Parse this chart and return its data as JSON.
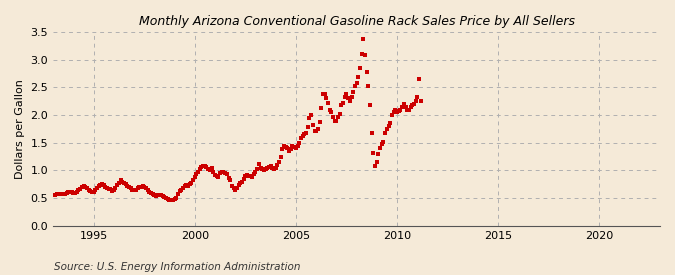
{
  "title": "Monthly Arizona Conventional Gasoline Rack Sales Price by All Sellers",
  "ylabel": "Dollars per Gallon",
  "source": "Source: U.S. Energy Information Administration",
  "background_color": "#f5ead8",
  "marker_color": "#cc0000",
  "xlim": [
    1993.0,
    2023.0
  ],
  "ylim": [
    0.0,
    3.5
  ],
  "yticks": [
    0.0,
    0.5,
    1.0,
    1.5,
    2.0,
    2.5,
    3.0,
    3.5
  ],
  "xticks": [
    1995,
    2000,
    2005,
    2010,
    2015,
    2020
  ],
  "data": [
    [
      1993.08,
      0.56
    ],
    [
      1993.17,
      0.57
    ],
    [
      1993.25,
      0.57
    ],
    [
      1993.33,
      0.57
    ],
    [
      1993.42,
      0.57
    ],
    [
      1993.5,
      0.57
    ],
    [
      1993.58,
      0.58
    ],
    [
      1993.67,
      0.6
    ],
    [
      1993.75,
      0.62
    ],
    [
      1993.83,
      0.62
    ],
    [
      1993.92,
      0.61
    ],
    [
      1994.0,
      0.6
    ],
    [
      1994.08,
      0.6
    ],
    [
      1994.17,
      0.62
    ],
    [
      1994.25,
      0.65
    ],
    [
      1994.33,
      0.67
    ],
    [
      1994.42,
      0.7
    ],
    [
      1994.5,
      0.72
    ],
    [
      1994.58,
      0.71
    ],
    [
      1994.67,
      0.68
    ],
    [
      1994.75,
      0.65
    ],
    [
      1994.83,
      0.63
    ],
    [
      1994.92,
      0.62
    ],
    [
      1995.0,
      0.62
    ],
    [
      1995.08,
      0.64
    ],
    [
      1995.17,
      0.68
    ],
    [
      1995.25,
      0.72
    ],
    [
      1995.33,
      0.74
    ],
    [
      1995.42,
      0.76
    ],
    [
      1995.5,
      0.74
    ],
    [
      1995.58,
      0.71
    ],
    [
      1995.67,
      0.69
    ],
    [
      1995.75,
      0.67
    ],
    [
      1995.83,
      0.66
    ],
    [
      1995.92,
      0.63
    ],
    [
      1996.0,
      0.64
    ],
    [
      1996.08,
      0.68
    ],
    [
      1996.17,
      0.73
    ],
    [
      1996.25,
      0.78
    ],
    [
      1996.33,
      0.82
    ],
    [
      1996.42,
      0.8
    ],
    [
      1996.5,
      0.78
    ],
    [
      1996.58,
      0.75
    ],
    [
      1996.67,
      0.72
    ],
    [
      1996.75,
      0.7
    ],
    [
      1996.83,
      0.68
    ],
    [
      1996.92,
      0.65
    ],
    [
      1997.0,
      0.64
    ],
    [
      1997.08,
      0.65
    ],
    [
      1997.17,
      0.68
    ],
    [
      1997.25,
      0.7
    ],
    [
      1997.33,
      0.7
    ],
    [
      1997.42,
      0.72
    ],
    [
      1997.5,
      0.7
    ],
    [
      1997.58,
      0.68
    ],
    [
      1997.67,
      0.65
    ],
    [
      1997.75,
      0.62
    ],
    [
      1997.83,
      0.6
    ],
    [
      1997.92,
      0.58
    ],
    [
      1998.0,
      0.55
    ],
    [
      1998.08,
      0.54
    ],
    [
      1998.17,
      0.55
    ],
    [
      1998.25,
      0.55
    ],
    [
      1998.33,
      0.55
    ],
    [
      1998.42,
      0.54
    ],
    [
      1998.5,
      0.52
    ],
    [
      1998.58,
      0.5
    ],
    [
      1998.67,
      0.48
    ],
    [
      1998.75,
      0.46
    ],
    [
      1998.83,
      0.46
    ],
    [
      1998.92,
      0.47
    ],
    [
      1999.0,
      0.48
    ],
    [
      1999.08,
      0.5
    ],
    [
      1999.17,
      0.58
    ],
    [
      1999.25,
      0.63
    ],
    [
      1999.33,
      0.65
    ],
    [
      1999.42,
      0.68
    ],
    [
      1999.5,
      0.72
    ],
    [
      1999.58,
      0.73
    ],
    [
      1999.67,
      0.72
    ],
    [
      1999.75,
      0.75
    ],
    [
      1999.83,
      0.78
    ],
    [
      1999.92,
      0.82
    ],
    [
      2000.0,
      0.88
    ],
    [
      2000.08,
      0.93
    ],
    [
      2000.17,
      0.98
    ],
    [
      2000.25,
      1.03
    ],
    [
      2000.33,
      1.07
    ],
    [
      2000.42,
      1.08
    ],
    [
      2000.5,
      1.08
    ],
    [
      2000.58,
      1.06
    ],
    [
      2000.67,
      1.03
    ],
    [
      2000.75,
      1.01
    ],
    [
      2000.83,
      1.05
    ],
    [
      2000.92,
      0.98
    ],
    [
      2001.0,
      0.92
    ],
    [
      2001.08,
      0.9
    ],
    [
      2001.17,
      0.88
    ],
    [
      2001.25,
      0.95
    ],
    [
      2001.33,
      0.97
    ],
    [
      2001.42,
      0.97
    ],
    [
      2001.5,
      0.95
    ],
    [
      2001.58,
      0.93
    ],
    [
      2001.67,
      0.87
    ],
    [
      2001.75,
      0.82
    ],
    [
      2001.83,
      0.72
    ],
    [
      2001.92,
      0.68
    ],
    [
      2002.0,
      0.65
    ],
    [
      2002.08,
      0.68
    ],
    [
      2002.17,
      0.73
    ],
    [
      2002.25,
      0.78
    ],
    [
      2002.33,
      0.8
    ],
    [
      2002.42,
      0.85
    ],
    [
      2002.5,
      0.9
    ],
    [
      2002.58,
      0.92
    ],
    [
      2002.67,
      0.9
    ],
    [
      2002.75,
      0.9
    ],
    [
      2002.83,
      0.88
    ],
    [
      2002.92,
      0.93
    ],
    [
      2003.0,
      0.98
    ],
    [
      2003.08,
      1.03
    ],
    [
      2003.17,
      1.12
    ],
    [
      2003.25,
      1.05
    ],
    [
      2003.33,
      1.02
    ],
    [
      2003.42,
      1.0
    ],
    [
      2003.5,
      1.02
    ],
    [
      2003.58,
      1.05
    ],
    [
      2003.67,
      1.07
    ],
    [
      2003.75,
      1.08
    ],
    [
      2003.83,
      1.05
    ],
    [
      2003.92,
      1.02
    ],
    [
      2004.0,
      1.05
    ],
    [
      2004.08,
      1.1
    ],
    [
      2004.17,
      1.15
    ],
    [
      2004.25,
      1.25
    ],
    [
      2004.33,
      1.38
    ],
    [
      2004.42,
      1.45
    ],
    [
      2004.5,
      1.42
    ],
    [
      2004.58,
      1.4
    ],
    [
      2004.67,
      1.35
    ],
    [
      2004.75,
      1.38
    ],
    [
      2004.83,
      1.45
    ],
    [
      2004.92,
      1.42
    ],
    [
      2005.0,
      1.4
    ],
    [
      2005.08,
      1.45
    ],
    [
      2005.17,
      1.5
    ],
    [
      2005.25,
      1.58
    ],
    [
      2005.33,
      1.63
    ],
    [
      2005.42,
      1.65
    ],
    [
      2005.5,
      1.68
    ],
    [
      2005.58,
      1.78
    ],
    [
      2005.67,
      1.95
    ],
    [
      2005.75,
      2.0
    ],
    [
      2005.83,
      1.82
    ],
    [
      2005.92,
      1.72
    ],
    [
      2006.0,
      1.72
    ],
    [
      2006.08,
      1.75
    ],
    [
      2006.17,
      1.88
    ],
    [
      2006.25,
      2.12
    ],
    [
      2006.33,
      2.38
    ],
    [
      2006.42,
      2.38
    ],
    [
      2006.5,
      2.3
    ],
    [
      2006.58,
      2.22
    ],
    [
      2006.67,
      2.1
    ],
    [
      2006.75,
      2.05
    ],
    [
      2006.83,
      1.97
    ],
    [
      2006.92,
      1.9
    ],
    [
      2007.0,
      1.9
    ],
    [
      2007.08,
      1.96
    ],
    [
      2007.17,
      2.02
    ],
    [
      2007.25,
      2.18
    ],
    [
      2007.33,
      2.22
    ],
    [
      2007.42,
      2.32
    ],
    [
      2007.5,
      2.38
    ],
    [
      2007.58,
      2.3
    ],
    [
      2007.67,
      2.26
    ],
    [
      2007.75,
      2.32
    ],
    [
      2007.83,
      2.42
    ],
    [
      2007.92,
      2.52
    ],
    [
      2008.0,
      2.58
    ],
    [
      2008.08,
      2.68
    ],
    [
      2008.17,
      2.85
    ],
    [
      2008.25,
      3.1
    ],
    [
      2008.33,
      3.38
    ],
    [
      2008.42,
      3.08
    ],
    [
      2008.5,
      2.78
    ],
    [
      2008.58,
      2.52
    ],
    [
      2008.67,
      2.18
    ],
    [
      2008.75,
      1.68
    ],
    [
      2008.83,
      1.32
    ],
    [
      2008.92,
      1.08
    ],
    [
      2009.0,
      1.15
    ],
    [
      2009.08,
      1.3
    ],
    [
      2009.17,
      1.4
    ],
    [
      2009.25,
      1.48
    ],
    [
      2009.33,
      1.52
    ],
    [
      2009.42,
      1.68
    ],
    [
      2009.5,
      1.75
    ],
    [
      2009.58,
      1.8
    ],
    [
      2009.67,
      1.85
    ],
    [
      2009.75,
      2.0
    ],
    [
      2009.83,
      2.05
    ],
    [
      2009.92,
      2.1
    ],
    [
      2010.0,
      2.05
    ],
    [
      2010.08,
      2.08
    ],
    [
      2010.17,
      2.1
    ],
    [
      2010.25,
      2.15
    ],
    [
      2010.33,
      2.2
    ],
    [
      2010.42,
      2.15
    ],
    [
      2010.5,
      2.1
    ],
    [
      2010.58,
      2.1
    ],
    [
      2010.67,
      2.15
    ],
    [
      2010.75,
      2.18
    ],
    [
      2010.83,
      2.2
    ],
    [
      2010.92,
      2.25
    ],
    [
      2011.0,
      2.32
    ],
    [
      2011.08,
      2.65
    ],
    [
      2011.17,
      2.25
    ]
  ]
}
